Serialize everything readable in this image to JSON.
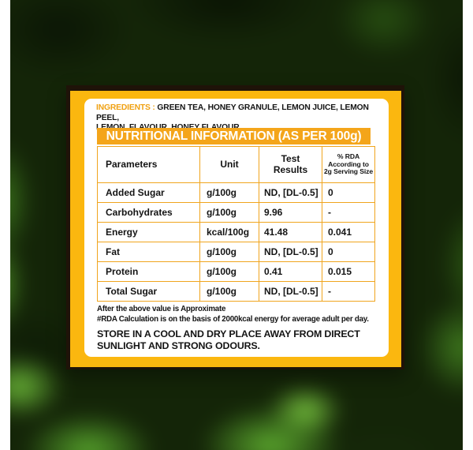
{
  "background": {
    "description": "blurred green tea leaves photo",
    "base_color": "#142508"
  },
  "colors": {
    "frame_yellow": "#fbb70f",
    "header_orange": "#f4a51a",
    "table_border": "#f0a51e",
    "card_outline": "#1f1308",
    "ingredients_label": "#f0a112",
    "text": "#141414"
  },
  "ingredients": {
    "label": "INGREDIENTS :",
    "line1": " GREEN TEA, HONEY GRANULE, LEMON JUICE, LEMON PEEL,",
    "line2": "LEMON  FLAVOUR, HONEY FLAVOUR"
  },
  "nutrition": {
    "title": "NUTRITIONAL INFORMATION (AS PER 100g)",
    "columns": [
      "Parameters",
      "Unit",
      "Test\nResults",
      "% RDA\nAccording to\n2g Serving Size"
    ],
    "rows": [
      [
        "Added Sugar",
        "g/100g",
        "ND, [DL-0.5]",
        "0"
      ],
      [
        "Carbohydrates",
        "g/100g",
        "9.96",
        "-"
      ],
      [
        "Energy",
        "kcal/100g",
        "41.48",
        "0.041"
      ],
      [
        "Fat",
        "g/100g",
        "ND, [DL-0.5]",
        "0"
      ],
      [
        "Protein",
        "g/100g",
        "0.41",
        "0.015"
      ],
      [
        "Total Sugar",
        "g/100g",
        "ND, [DL-0.5]",
        "-"
      ]
    ]
  },
  "notes": {
    "approx": "After the above value is Approximate",
    "rda": "#RDA Calculation is on the basis of 2000kcal energy for average adult per day."
  },
  "storage": "STORE IN A COOL AND DRY PLACE AWAY FROM DIRECT\nSUNLIGHT AND STRONG ODOURS."
}
